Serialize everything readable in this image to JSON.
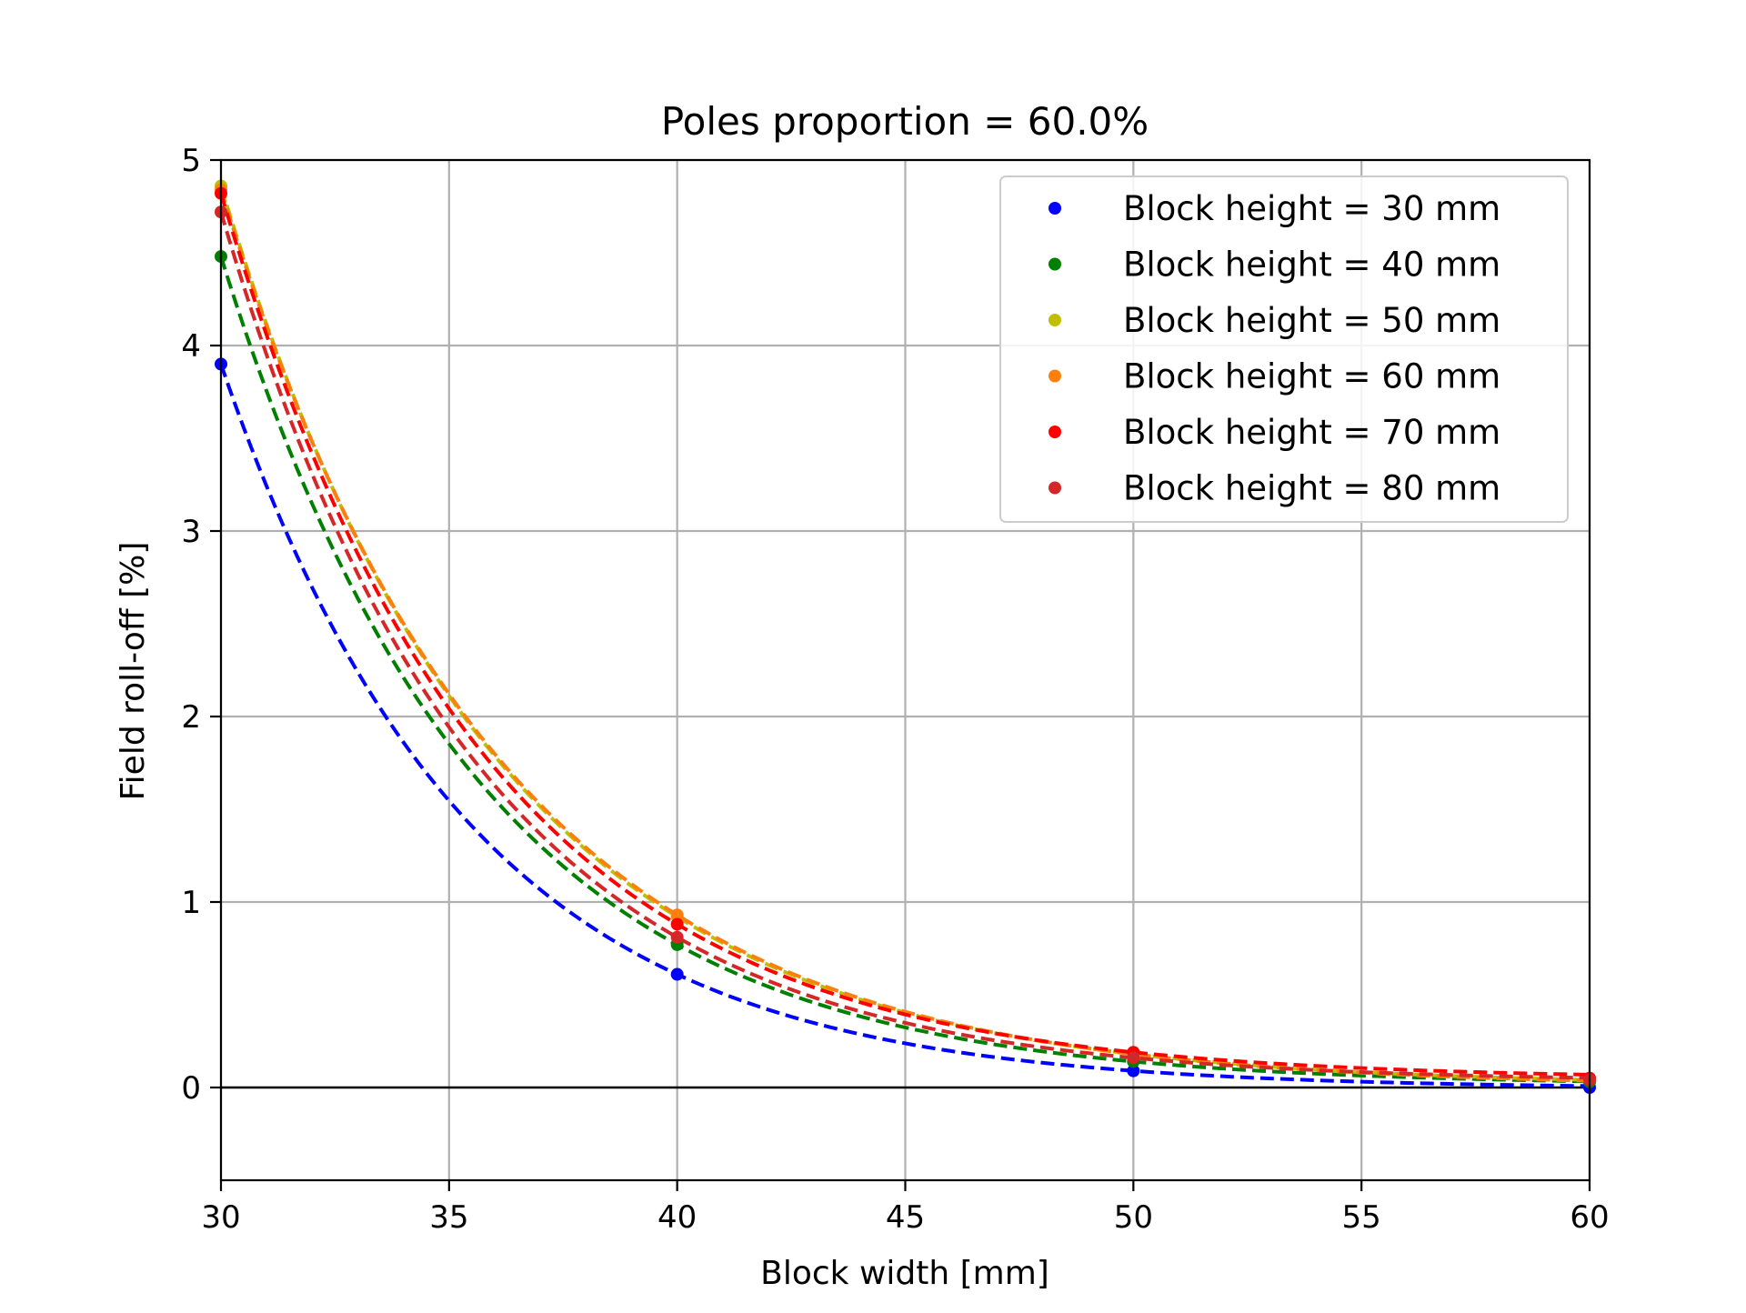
{
  "chart_data": {
    "type": "line",
    "title": "Poles proportion = 60.0%",
    "xlabel": "Block width [mm]",
    "ylabel": "Field roll-off [%]",
    "xlim": [
      30,
      60
    ],
    "ylim": [
      -0.5,
      5
    ],
    "xticks": [
      30,
      35,
      40,
      45,
      50,
      55,
      60
    ],
    "yticks": [
      0,
      1,
      2,
      3,
      4,
      5
    ],
    "grid": true,
    "zero_line": true,
    "legend_position": "top-right",
    "x": [
      30,
      40,
      50,
      60
    ],
    "series": [
      {
        "name": "Block height = 30 mm",
        "color": "#0000ff",
        "values": [
          3.9,
          0.61,
          0.09,
          0.0
        ]
      },
      {
        "name": "Block height = 40 mm",
        "color": "#008000",
        "values": [
          4.48,
          0.77,
          0.14,
          0.03
        ]
      },
      {
        "name": "Block height = 50 mm",
        "color": "#bfbf00",
        "values": [
          4.86,
          0.92,
          0.18,
          0.05
        ]
      },
      {
        "name": "Block height = 60 mm",
        "color": "#ff7f0e",
        "values": [
          4.84,
          0.93,
          0.18,
          0.05
        ]
      },
      {
        "name": "Block height = 70 mm",
        "color": "#ff0000",
        "values": [
          4.82,
          0.88,
          0.19,
          0.05
        ]
      },
      {
        "name": "Block height = 80 mm",
        "color": "#d62728",
        "values": [
          4.72,
          0.81,
          0.16,
          0.04
        ]
      }
    ]
  }
}
